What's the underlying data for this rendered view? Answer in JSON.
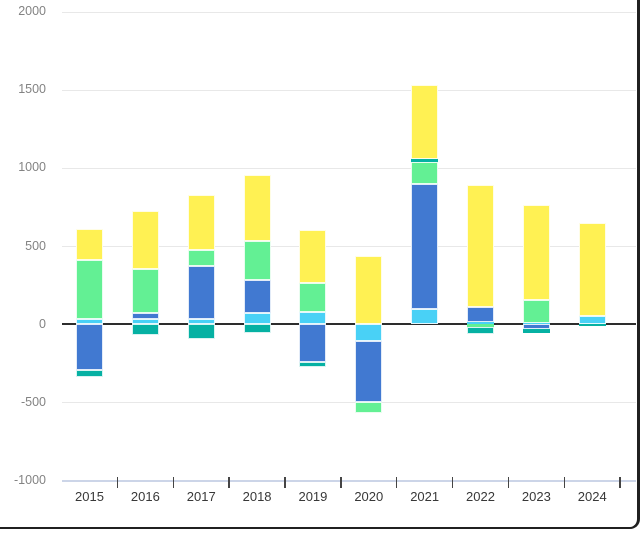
{
  "chart_data": {
    "type": "bar",
    "stacked": true,
    "title": "",
    "xlabel": "",
    "ylabel": "",
    "categories": [
      "2015",
      "2016",
      "2017",
      "2018",
      "2019",
      "2020",
      "2021",
      "2022",
      "2023",
      "2024"
    ],
    "series": [
      {
        "name": "lightblue",
        "color": "#49D1F6",
        "values": [
          35,
          35,
          35,
          75,
          80,
          -105,
          100,
          15,
          10,
          55
        ]
      },
      {
        "name": "blue",
        "color": "#4179D1",
        "values": [
          -290,
          40,
          340,
          205,
          -240,
          -395,
          800,
          95,
          -30,
          0
        ]
      },
      {
        "name": "green",
        "color": "#63F094",
        "values": [
          375,
          280,
          100,
          250,
          185,
          -70,
          140,
          -15,
          145,
          0
        ]
      },
      {
        "name": "teal",
        "color": "#06B1A3",
        "values": [
          -45,
          -70,
          -95,
          -55,
          -35,
          0,
          20,
          -50,
          -25,
          -10
        ]
      },
      {
        "name": "yellow",
        "color": "#FFF153",
        "values": [
          200,
          370,
          355,
          425,
          335,
          435,
          470,
          780,
          610,
          590
        ]
      }
    ],
    "ylim": [
      -1000,
      2000
    ],
    "ytick_interval": 500,
    "y_tick_labels": [
      "2000",
      "1500",
      "1000",
      "500",
      "0",
      "-500",
      "-1000"
    ],
    "grid": true,
    "legend": false,
    "zero_line_color": "#2d2d2d",
    "gridline_color": "#e8e8e8",
    "axis_line_color": "#ccd5e8",
    "y_label_color": "#838383",
    "x_label_color": "#383838"
  }
}
